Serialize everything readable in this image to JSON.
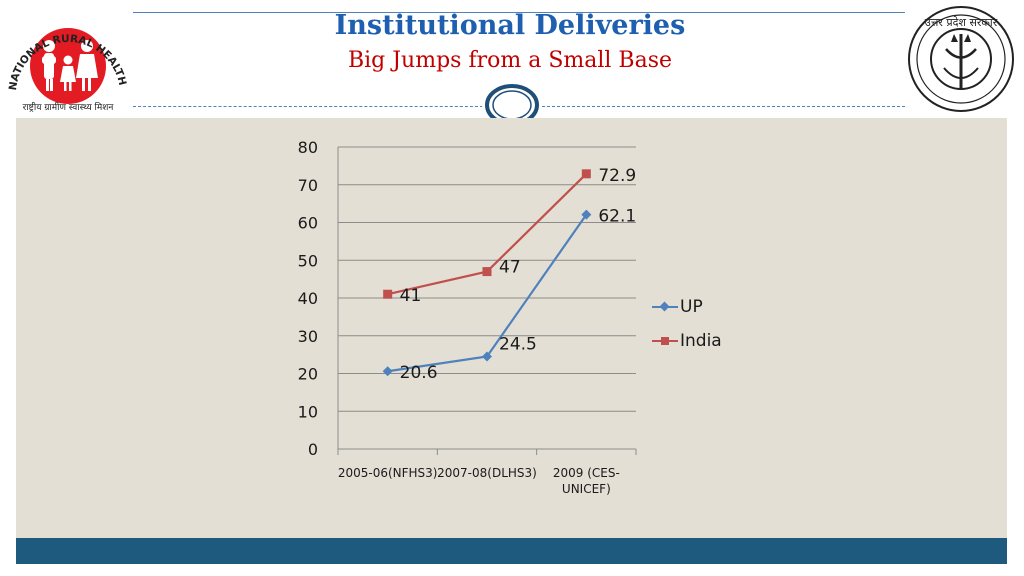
{
  "header": {
    "title": "Institutional Deliveries",
    "subtitle": "Big Jumps from a Small Base",
    "left_logo_text": "NATIONAL RURAL HEALTH MISSION",
    "left_logo_hindi": "राष्ट्रीय ग्रामीण स्वास्थ्य मिशन",
    "right_logo_text": "उत्तर प्रदेश सरकार"
  },
  "colors": {
    "title": "#1f5fb0",
    "subtitle": "#c00000",
    "up_series": "#4f81bd",
    "india_series": "#c0504d",
    "panel": "#e4dfd4",
    "footer": "#1d5a7e"
  },
  "chart_data": {
    "type": "line",
    "title": "",
    "xlabel": "",
    "ylabel": "",
    "categories": [
      "2005-06(NFHS3)",
      "2007-08(DLHS3)",
      "2009 (CES-UNICEF)"
    ],
    "category_lines": [
      [
        "2005-06(NFHS3)"
      ],
      [
        "2007-08(DLHS3)"
      ],
      [
        "2009 (CES-",
        "UNICEF)"
      ]
    ],
    "ylim": [
      0,
      80
    ],
    "yticks": [
      0,
      10,
      20,
      30,
      40,
      50,
      60,
      70,
      80
    ],
    "grid": true,
    "legend_position": "right",
    "series": [
      {
        "name": "UP",
        "values": [
          20.6,
          24.5,
          62.1
        ],
        "labels": [
          "20.6",
          "24.5",
          "62.1"
        ],
        "color": "#4f81bd",
        "marker": "diamond"
      },
      {
        "name": "India",
        "values": [
          41,
          47,
          72.9
        ],
        "labels": [
          "41",
          "47",
          "72.9"
        ],
        "color": "#c0504d",
        "marker": "square"
      }
    ]
  }
}
